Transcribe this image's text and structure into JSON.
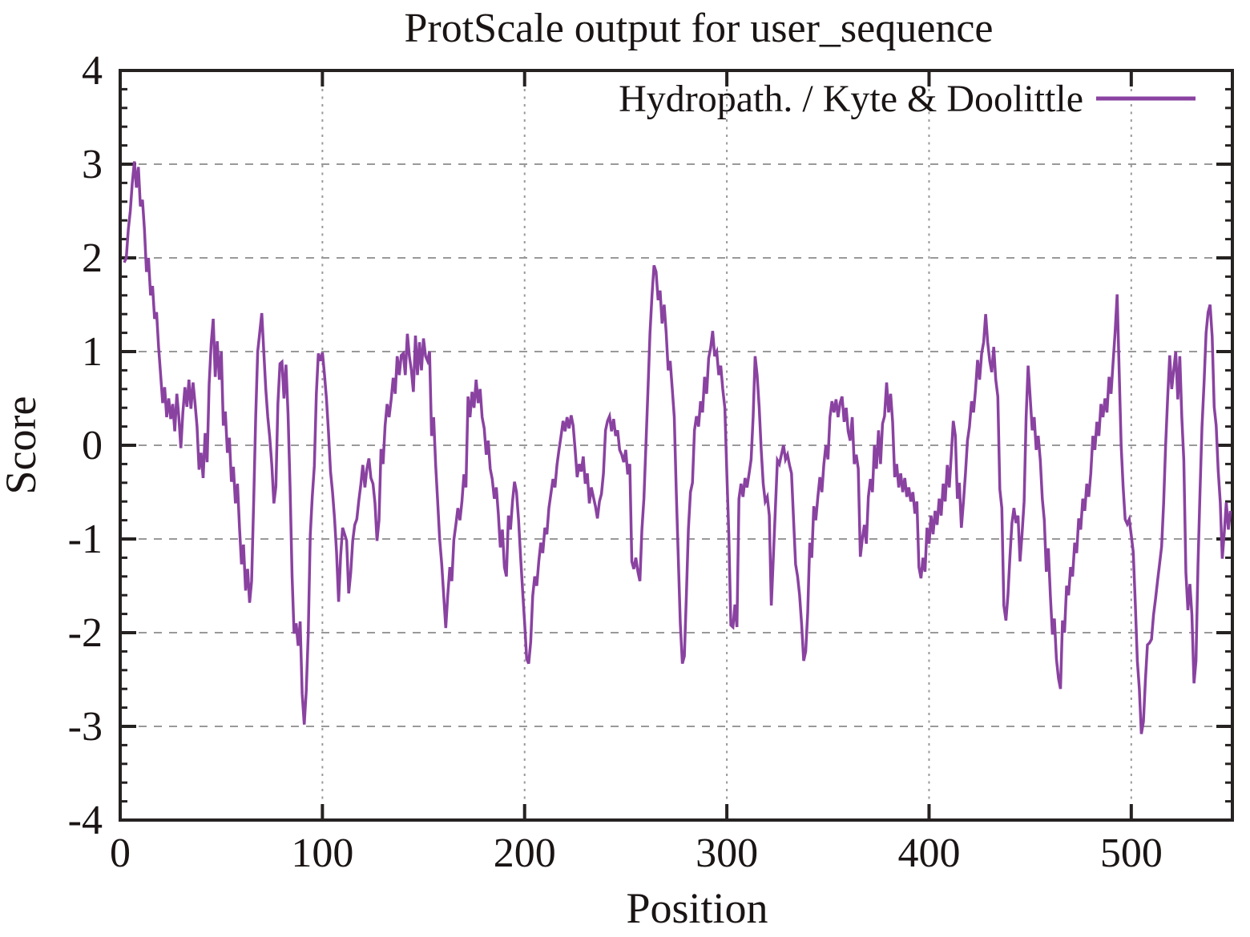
{
  "page": {
    "background": "#ffffff"
  },
  "chart_data": {
    "type": "line",
    "title": "ProtScale output for user_sequence",
    "xlabel": "Position",
    "ylabel": "Score",
    "xlim": [
      0,
      550
    ],
    "ylim": [
      -4,
      4
    ],
    "x_ticks": [
      0,
      100,
      200,
      300,
      400,
      500
    ],
    "y_ticks": [
      -4,
      -3,
      -2,
      -1,
      0,
      1,
      2,
      3,
      4
    ],
    "y_minor_step": 0.2,
    "grid": "dashed gray at major ticks, both axes",
    "legend_position": "top-right inside plot",
    "colors": {
      "line": "#8a42a1",
      "axis": "#262222",
      "grid": "#999999",
      "text": "#1a1414"
    },
    "series": [
      {
        "name": "Hydropath. / Kyte & Doolittle",
        "color": "#8a42a1",
        "x_start": 2,
        "x_step": 1,
        "values": [
          1.95,
          2.0,
          2.3,
          2.5,
          2.8,
          3.03,
          2.75,
          2.97,
          2.55,
          2.62,
          2.3,
          1.85,
          2.0,
          1.6,
          1.7,
          1.35,
          1.42,
          1.05,
          0.75,
          0.45,
          0.62,
          0.3,
          0.5,
          0.28,
          0.44,
          0.15,
          0.55,
          0.3,
          -0.03,
          0.35,
          0.62,
          0.41,
          0.7,
          0.39,
          0.67,
          0.45,
          0.2,
          -0.26,
          -0.08,
          -0.35,
          0.13,
          -0.18,
          0.65,
          1.09,
          1.35,
          0.73,
          1.11,
          0.7,
          1.0,
          0.21,
          0.36,
          -0.08,
          0.08,
          -0.39,
          -0.23,
          -0.62,
          -0.41,
          -0.88,
          -1.27,
          -1.06,
          -1.55,
          -1.32,
          -1.68,
          -1.45,
          -0.6,
          0.3,
          1.0,
          1.2,
          1.41,
          1.0,
          0.6,
          0.3,
          0.08,
          -0.22,
          -0.62,
          -0.44,
          0.44,
          0.87,
          0.89,
          0.5,
          0.86,
          0.33,
          -0.44,
          -1.39,
          -2.01,
          -1.9,
          -2.14,
          -1.88,
          -2.65,
          -2.98,
          -2.62,
          -2.01,
          -0.96,
          -0.55,
          -0.22,
          0.55,
          0.98,
          0.9,
          0.99,
          0.76,
          0.5,
          0.15,
          -0.28,
          -0.5,
          -0.78,
          -1.14,
          -1.67,
          -1.18,
          -0.88,
          -0.95,
          -1.02,
          -1.58,
          -1.36,
          -1.02,
          -0.85,
          -0.79,
          -0.59,
          -0.42,
          -0.21,
          -0.45,
          -0.25,
          -0.14,
          -0.35,
          -0.41,
          -0.62,
          -1.02,
          -0.8,
          -0.04,
          -0.2,
          0.21,
          0.44,
          0.3,
          0.49,
          0.72,
          0.55,
          0.95,
          0.75,
          0.96,
          0.98,
          0.75,
          1.19,
          0.95,
          0.8,
          0.57,
          1.17,
          0.75,
          1.1,
          0.8,
          1.14,
          0.95,
          0.9,
          1.0,
          0.1,
          0.3,
          -0.21,
          -0.6,
          -1.0,
          -1.27,
          -1.61,
          -1.95,
          -1.6,
          -1.3,
          -1.45,
          -1.01,
          -0.85,
          -0.67,
          -0.8,
          -0.6,
          -0.31,
          -0.45,
          0.52,
          0.3,
          0.57,
          0.4,
          0.7,
          0.45,
          0.6,
          0.3,
          0.18,
          -0.1,
          0.05,
          -0.25,
          -0.36,
          -0.57,
          -0.45,
          -0.73,
          -1.09,
          -0.9,
          -1.3,
          -1.4,
          -0.75,
          -0.9,
          -0.6,
          -0.39,
          -0.5,
          -0.8,
          -1.19,
          -1.55,
          -1.89,
          -2.28,
          -2.33,
          -2.1,
          -1.61,
          -1.4,
          -1.5,
          -1.24,
          -1.04,
          -1.15,
          -0.88,
          -0.95,
          -0.67,
          -0.52,
          -0.36,
          -0.45,
          -0.21,
          -0.05,
          0.1,
          0.26,
          0.15,
          0.3,
          0.18,
          0.32,
          0.21,
          -0.05,
          -0.34,
          -0.2,
          -0.28,
          -0.12,
          -0.41,
          -0.3,
          -0.62,
          -0.45,
          -0.55,
          -0.65,
          -0.78,
          -0.6,
          -0.52,
          -0.3,
          0.16,
          0.26,
          0.31,
          0.15,
          0.28,
          0.1,
          0.16,
          -0.05,
          -0.1,
          -0.18,
          -0.05,
          -0.31,
          -0.2,
          -1.24,
          -1.32,
          -1.2,
          -1.35,
          -1.45,
          -0.9,
          -0.57,
          0.0,
          0.6,
          1.2,
          1.6,
          1.92,
          1.85,
          1.55,
          1.65,
          1.3,
          1.5,
          1.2,
          0.8,
          0.9,
          0.6,
          0.3,
          -0.5,
          -1.2,
          -1.9,
          -2.33,
          -2.25,
          -1.6,
          -0.9,
          -0.5,
          -0.4,
          0.16,
          0.31,
          0.2,
          0.47,
          0.35,
          0.73,
          0.55,
          0.93,
          1.04,
          1.22,
          0.95,
          1.0,
          0.75,
          0.85,
          0.6,
          0.4,
          -0.3,
          -0.96,
          -1.92,
          -1.94,
          -1.7,
          -1.94,
          -0.57,
          -0.41,
          -0.55,
          -0.35,
          -0.45,
          -0.3,
          -0.15,
          0.3,
          0.95,
          0.75,
          0.4,
          -0.05,
          -0.41,
          -0.6,
          -0.55,
          -0.75,
          -1.71,
          -1.2,
          -0.67,
          -0.16,
          -0.2,
          -0.1,
          0.0,
          -0.15,
          -0.1,
          -0.21,
          -0.3,
          -0.8,
          -1.27,
          -1.4,
          -1.6,
          -1.92,
          -2.3,
          -2.2,
          -1.79,
          -1.04,
          -1.2,
          -0.65,
          -0.8,
          -0.55,
          -0.34,
          -0.5,
          -0.2,
          0.0,
          -0.15,
          0.3,
          0.47,
          0.35,
          0.49,
          0.3,
          0.45,
          0.52,
          0.25,
          0.4,
          0.15,
          0.05,
          0.3,
          -0.2,
          -0.1,
          -0.25,
          -1.19,
          -1.0,
          -0.85,
          -1.05,
          -0.55,
          -0.36,
          -0.5,
          0.0,
          -0.25,
          0.16,
          -0.2,
          0.23,
          0.31,
          0.67,
          0.35,
          0.55,
          0.25,
          -0.34,
          -0.2,
          -0.45,
          -0.3,
          -0.5,
          -0.35,
          -0.55,
          -0.45,
          -0.6,
          -0.5,
          -0.73,
          -0.6,
          -1.3,
          -1.42,
          -1.2,
          -1.35,
          -0.88,
          -1.05,
          -0.75,
          -0.95,
          -0.7,
          -0.85,
          -0.57,
          -0.75,
          -0.41,
          -0.6,
          -0.21,
          -0.45,
          -0.1,
          0.26,
          0.1,
          -0.57,
          -0.4,
          -0.88,
          -0.6,
          -0.3,
          0.05,
          0.2,
          0.47,
          0.35,
          0.6,
          0.91,
          0.7,
          0.98,
          1.1,
          1.4,
          1.1,
          0.9,
          0.78,
          1.05,
          0.7,
          0.52,
          -0.47,
          -0.67,
          -1.71,
          -1.87,
          -1.6,
          -1.19,
          -0.83,
          -0.67,
          -0.83,
          -0.75,
          -1.24,
          -0.95,
          -0.6,
          0.3,
          0.85,
          0.52,
          0.16,
          0.3,
          -0.05,
          0.1,
          -0.16,
          -0.57,
          -0.8,
          -1.35,
          -1.1,
          -1.61,
          -2.02,
          -1.85,
          -2.28,
          -2.49,
          -2.6,
          -1.87,
          -2.0,
          -1.5,
          -1.6,
          -1.3,
          -1.4,
          -1.04,
          -1.15,
          -0.78,
          -0.9,
          -0.57,
          -0.7,
          -0.41,
          -0.55,
          -0.3,
          0.1,
          -0.05,
          0.25,
          0.1,
          0.44,
          0.3,
          0.5,
          0.35,
          0.73,
          0.55,
          0.88,
          1.2,
          1.61,
          0.8,
          0.0,
          -0.45,
          -0.79,
          -0.84,
          -0.79,
          -0.96,
          -1.14,
          -1.7,
          -2.3,
          -2.6,
          -3.08,
          -2.95,
          -2.5,
          -2.13,
          -2.11,
          -2.07,
          -1.81,
          -1.64,
          -1.45,
          -1.27,
          -1.08,
          -0.62,
          0.0,
          0.5,
          0.96,
          0.6,
          0.8,
          1.0,
          0.49,
          0.95,
          0.3,
          -0.16,
          -1.36,
          -1.76,
          -1.48,
          -1.81,
          -2.54,
          -2.3,
          -1.27,
          -0.5,
          0.2,
          0.67,
          1.2,
          1.42,
          1.5,
          1.16,
          0.41,
          0.21,
          -0.27,
          -0.61,
          -1.21,
          -0.93,
          -0.61,
          -0.9,
          -0.7
        ]
      }
    ]
  }
}
